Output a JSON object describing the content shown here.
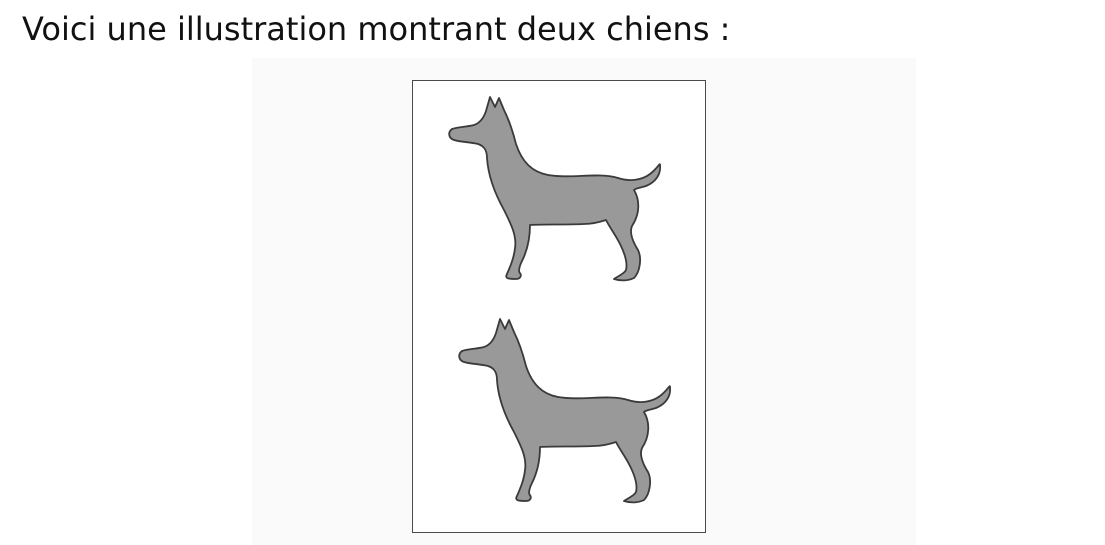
{
  "heading": {
    "text": "Voici une illustration montrant deux chiens :"
  },
  "illustration": {
    "dogs": [
      {
        "icon": "dog-silhouette-icon",
        "fill": "#999999",
        "stroke": "#3a3a3a"
      },
      {
        "icon": "dog-silhouette-icon",
        "fill": "#999999",
        "stroke": "#3a3a3a"
      }
    ],
    "frame_color": "#4a4a4a"
  }
}
